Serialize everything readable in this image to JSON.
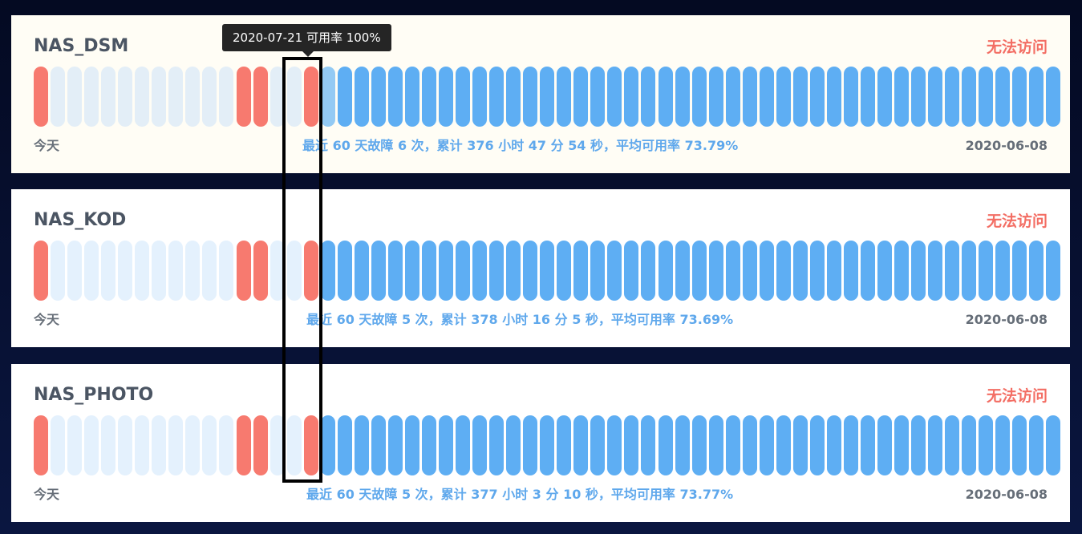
{
  "tooltip": {
    "text": "2020-07-21 可用率 100%"
  },
  "monitors": [
    {
      "name": "NAS_DSM",
      "status": "无法访问",
      "left_label": "今天",
      "summary": "最近 60 天故障 6 次，累计 376 小时 47 分 54 秒，平均可用率 73.79%",
      "right_label": "2020-06-08",
      "days": [
        "fail",
        "none",
        "none",
        "none",
        "none",
        "none",
        "none",
        "none",
        "none",
        "none",
        "none",
        "none",
        "fail",
        "fail",
        "none",
        "none",
        "fail",
        "hover",
        "ok",
        "ok",
        "ok",
        "ok",
        "ok",
        "ok",
        "ok",
        "ok",
        "ok",
        "ok",
        "ok",
        "ok",
        "ok",
        "ok",
        "ok",
        "ok",
        "ok",
        "ok",
        "ok",
        "ok",
        "ok",
        "ok",
        "ok",
        "ok",
        "ok",
        "ok",
        "ok",
        "ok",
        "ok",
        "ok",
        "ok",
        "ok",
        "ok",
        "ok",
        "ok",
        "ok",
        "ok",
        "ok",
        "ok",
        "ok",
        "ok",
        "ok",
        "ok"
      ]
    },
    {
      "name": "NAS_KOD",
      "status": "无法访问",
      "left_label": "今天",
      "summary": "最近 60 天故障 5 次，累计 378 小时 16 分 5 秒，平均可用率 73.69%",
      "right_label": "2020-06-08",
      "days": [
        "fail",
        "none",
        "none",
        "none",
        "none",
        "none",
        "none",
        "none",
        "none",
        "none",
        "none",
        "none",
        "fail",
        "fail",
        "none",
        "none",
        "fail",
        "ok",
        "ok",
        "ok",
        "ok",
        "ok",
        "ok",
        "ok",
        "ok",
        "ok",
        "ok",
        "ok",
        "ok",
        "ok",
        "ok",
        "ok",
        "ok",
        "ok",
        "ok",
        "ok",
        "ok",
        "ok",
        "ok",
        "ok",
        "ok",
        "ok",
        "ok",
        "ok",
        "ok",
        "ok",
        "ok",
        "ok",
        "ok",
        "ok",
        "ok",
        "ok",
        "ok",
        "ok",
        "ok",
        "ok",
        "ok",
        "ok",
        "ok",
        "ok",
        "ok"
      ]
    },
    {
      "name": "NAS_PHOTO",
      "status": "无法访问",
      "left_label": "今天",
      "summary": "最近 60 天故障 5 次，累计 377 小时 3 分 10 秒，平均可用率 73.77%",
      "right_label": "2020-06-08",
      "days": [
        "fail",
        "none",
        "none",
        "none",
        "none",
        "none",
        "none",
        "none",
        "none",
        "none",
        "none",
        "none",
        "fail",
        "fail",
        "none",
        "none",
        "fail",
        "ok",
        "ok",
        "ok",
        "ok",
        "ok",
        "ok",
        "ok",
        "ok",
        "ok",
        "ok",
        "ok",
        "ok",
        "ok",
        "ok",
        "ok",
        "ok",
        "ok",
        "ok",
        "ok",
        "ok",
        "ok",
        "ok",
        "ok",
        "ok",
        "ok",
        "ok",
        "ok",
        "ok",
        "ok",
        "ok",
        "ok",
        "ok",
        "ok",
        "ok",
        "ok",
        "ok",
        "ok",
        "ok",
        "ok",
        "ok",
        "ok",
        "ok",
        "ok",
        "ok"
      ]
    }
  ]
}
